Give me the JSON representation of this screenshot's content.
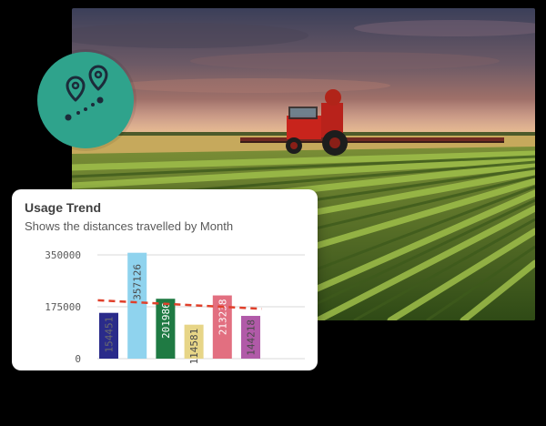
{
  "card": {
    "title": "Usage Trend",
    "subtitle": "Shows the distances travelled by Month"
  },
  "badge": {
    "icon": "route-pins-icon",
    "color": "#2fa38c"
  },
  "photo": {
    "icon": "tractor-field-photo"
  },
  "chart_data": {
    "type": "bar",
    "title": "Usage Trend",
    "subtitle": "Shows the distances travelled by Month",
    "xlabel": "",
    "ylabel": "",
    "ylim": [
      0,
      350000
    ],
    "yticks": [
      {
        "value": 350000,
        "label": "350000"
      },
      {
        "value": 175000,
        "label": "175000"
      },
      {
        "value": 0,
        "label": "0"
      }
    ],
    "grid": true,
    "values": [
      154451,
      357126,
      201986,
      114581,
      213238,
      144218
    ],
    "labels": [
      "154451",
      "357126",
      "201986",
      "114581",
      "213238",
      "144218"
    ],
    "colors": [
      "#2a2b8a",
      "#8fd3ee",
      "#1f7a43",
      "#e7d587",
      "#e26f80",
      "#b15aa8"
    ],
    "label_colors": [
      "#6c6c6c",
      "#4a4a4a",
      "#ffffff",
      "#4a4a4a",
      "#ffffff",
      "#4a4a4a"
    ],
    "trendline": {
      "style": "dashed",
      "color": "#e0402b",
      "start": 197000,
      "end": 168000
    }
  }
}
